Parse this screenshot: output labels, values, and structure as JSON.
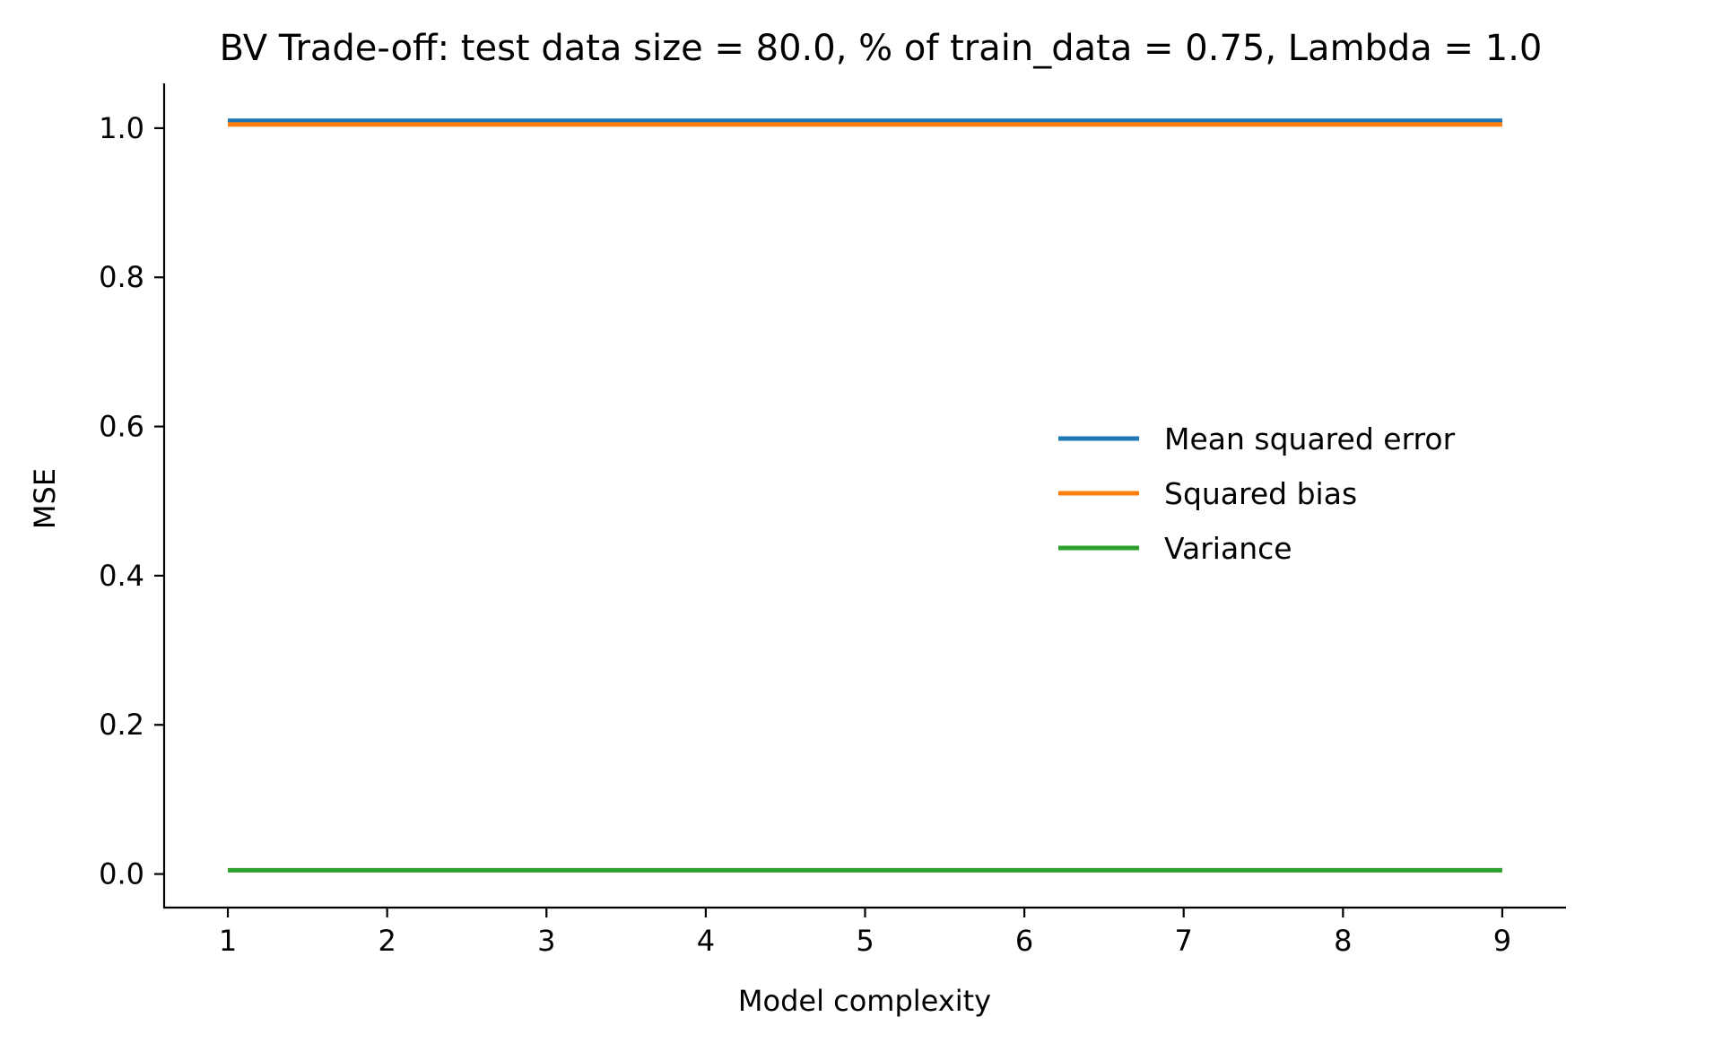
{
  "chart_data": {
    "type": "line",
    "title": "BV Trade-off: test data size = 80.0, % of train_data = 0.75, Lambda = 1.0",
    "xlabel": "Model complexity",
    "ylabel": "MSE",
    "x": [
      1,
      2,
      3,
      4,
      5,
      6,
      7,
      8,
      9
    ],
    "xlim": [
      0.6,
      9.4
    ],
    "ylim": [
      -0.045,
      1.06
    ],
    "xticks": [
      "1",
      "2",
      "3",
      "4",
      "5",
      "6",
      "7",
      "8",
      "9"
    ],
    "yticks": [
      "0.0",
      "0.2",
      "0.4",
      "0.6",
      "0.8",
      "1.0"
    ],
    "grid": false,
    "legend_position": "center-right",
    "series": [
      {
        "name": "Mean squared error",
        "color": "#1f77b4",
        "values": [
          1.01,
          1.01,
          1.01,
          1.01,
          1.01,
          1.01,
          1.01,
          1.01,
          1.01
        ]
      },
      {
        "name": "Squared bias",
        "color": "#ff7f0e",
        "values": [
          1.005,
          1.005,
          1.005,
          1.005,
          1.005,
          1.005,
          1.005,
          1.005,
          1.005
        ]
      },
      {
        "name": "Variance",
        "color": "#2ca02c",
        "values": [
          0.005,
          0.005,
          0.005,
          0.005,
          0.005,
          0.005,
          0.005,
          0.005,
          0.005
        ]
      }
    ]
  }
}
